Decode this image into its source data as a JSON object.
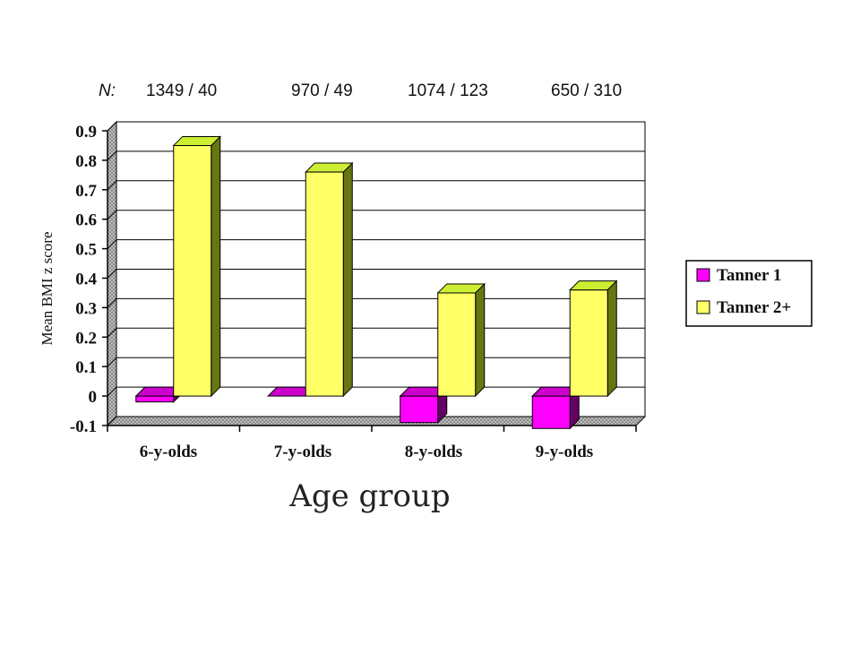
{
  "chart_data": {
    "type": "bar",
    "style": "3d-clustered",
    "n_label": "N:",
    "n_values": [
      "1349 / 40",
      "970 / 49",
      "1074 / 123",
      "650 / 310"
    ],
    "categories": [
      "6-y-olds",
      "7-y-olds",
      "8-y-olds",
      "9-y-olds"
    ],
    "series": [
      {
        "name": "Tanner 1",
        "values": [
          -0.02,
          0.0,
          -0.09,
          -0.11
        ],
        "color": "#ff00ff"
      },
      {
        "name": "Tanner 2+",
        "values": [
          0.85,
          0.76,
          0.35,
          0.36
        ],
        "color": "#ffff66"
      }
    ],
    "ylabel": "Mean BMI z score",
    "xlabel": "Age group",
    "ylim": [
      -0.1,
      0.9
    ],
    "yticks": [
      "0.9",
      "0.8",
      "0.7",
      "0.6",
      "0.5",
      "0.4",
      "0.3",
      "0.2",
      "0.1",
      "0",
      "-0.1"
    ],
    "grid": true,
    "legend_position": "right"
  }
}
